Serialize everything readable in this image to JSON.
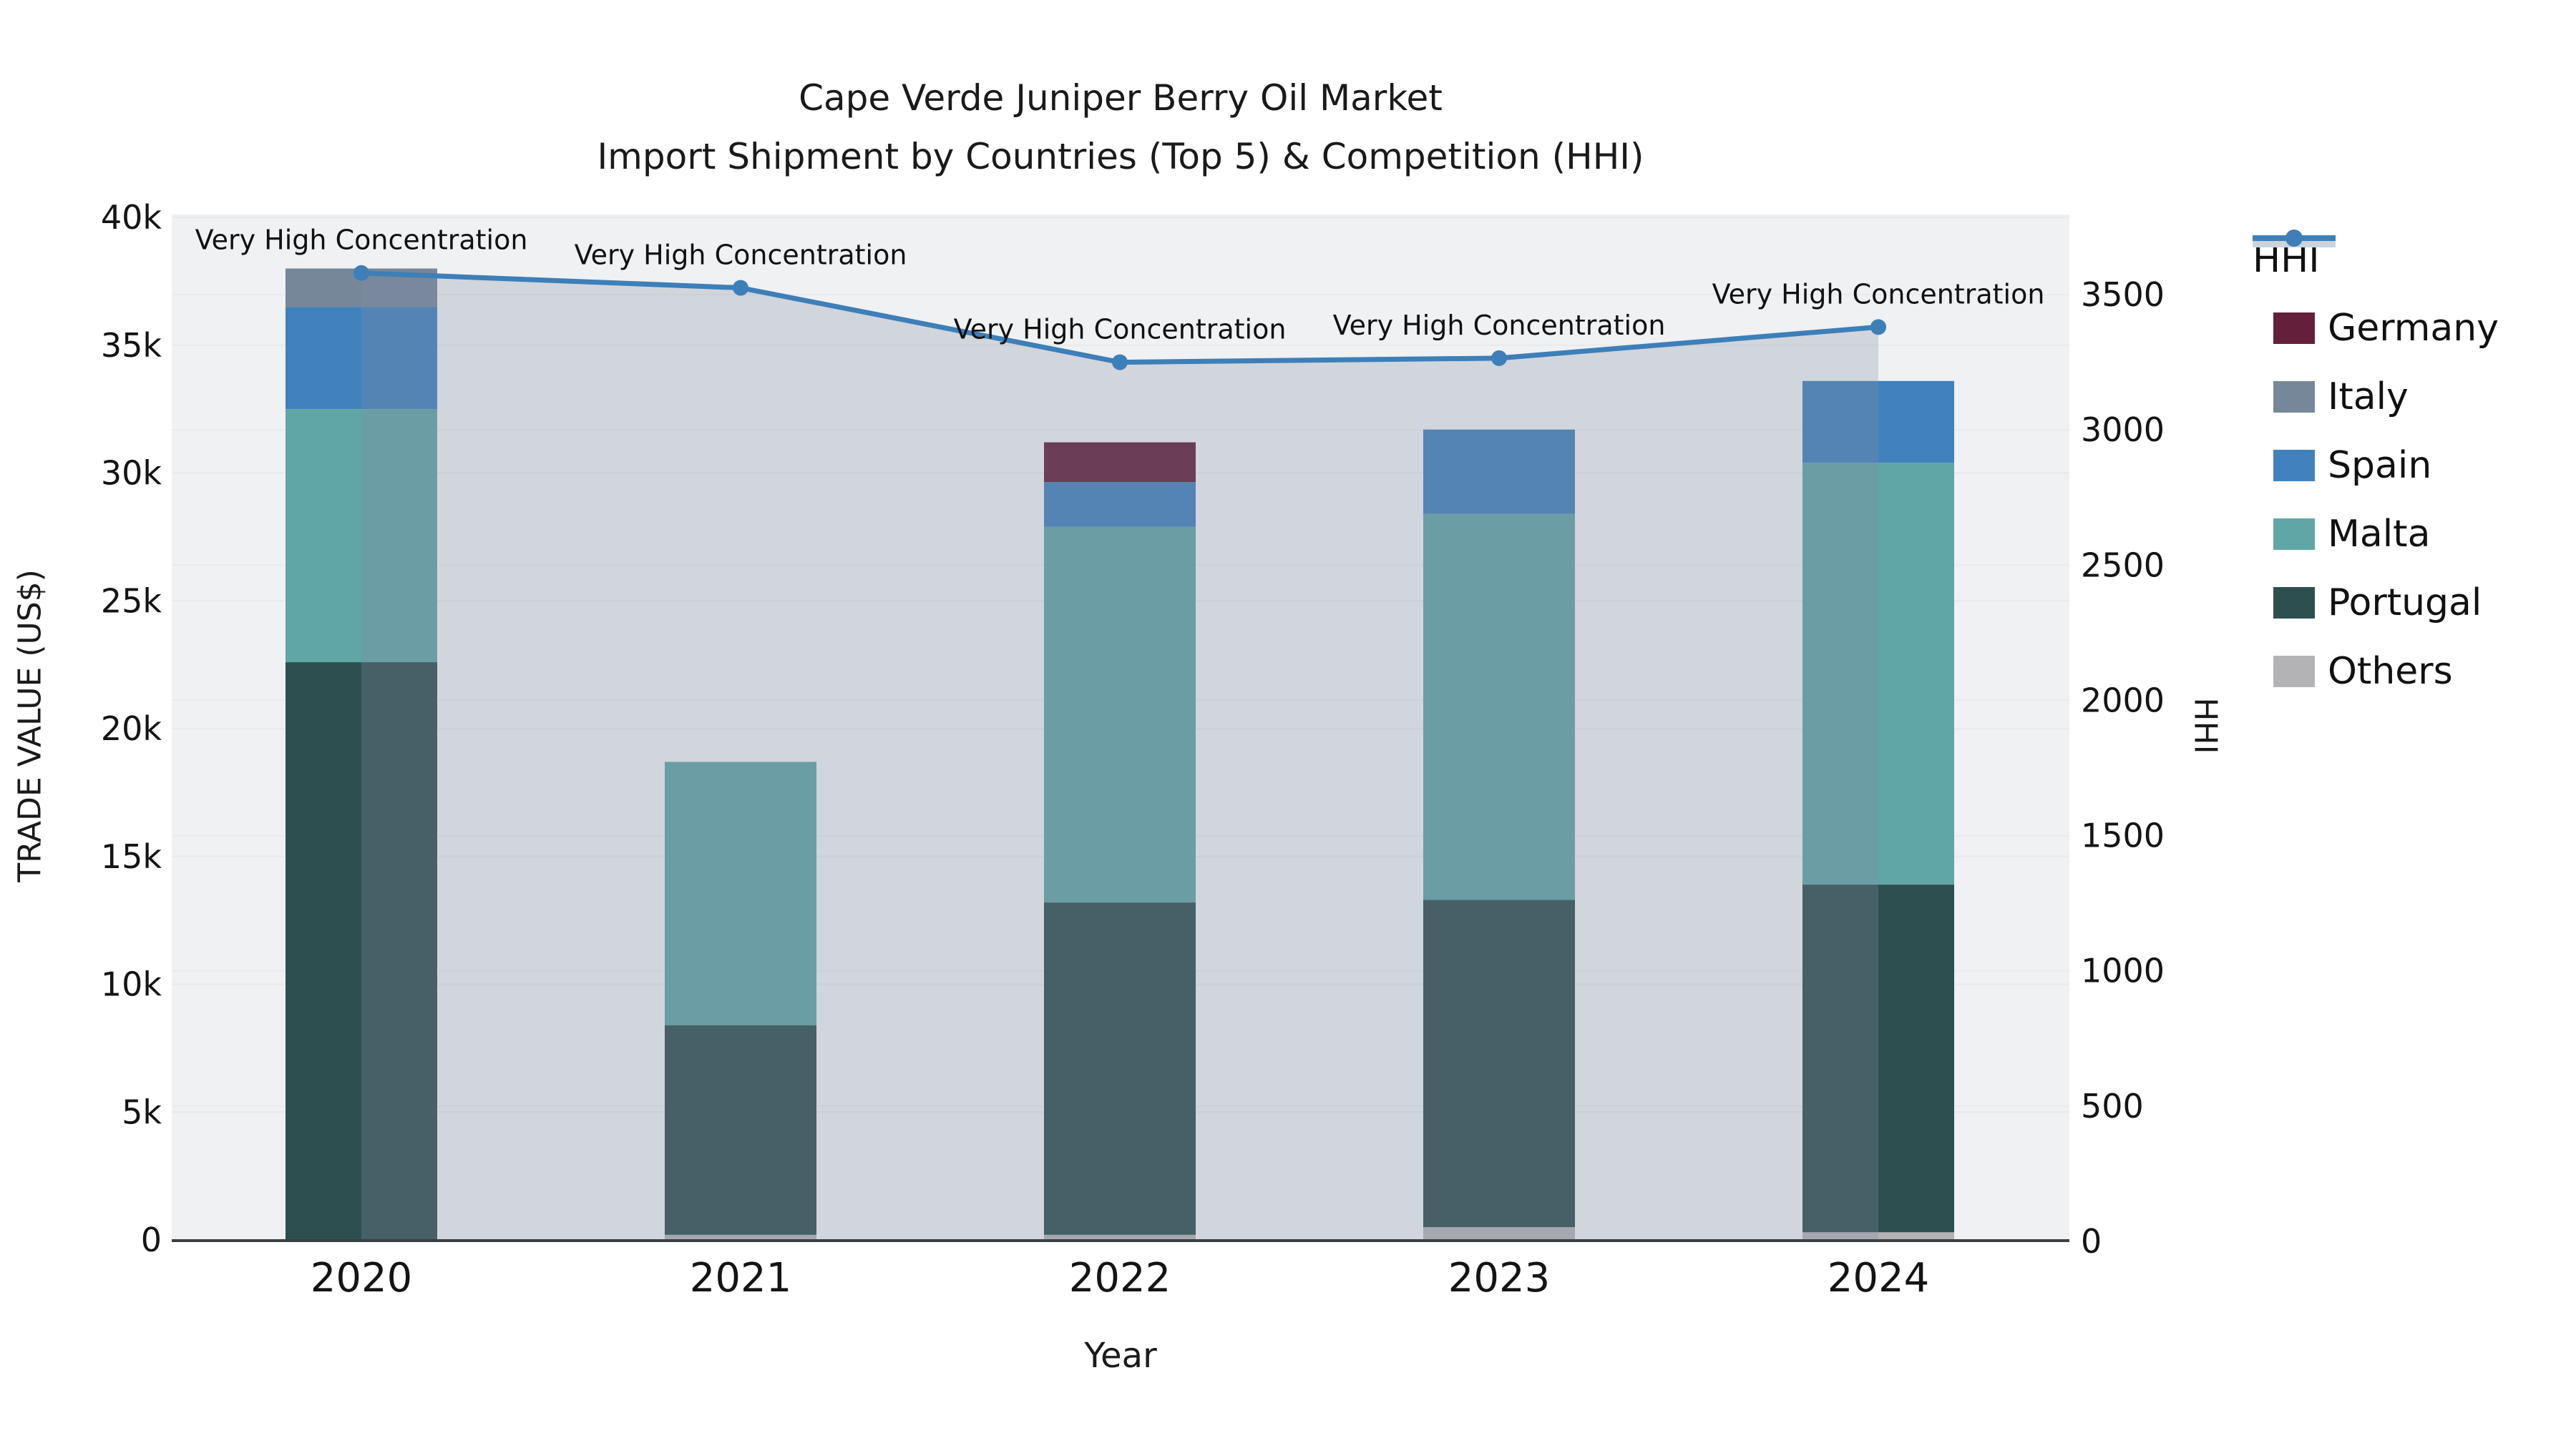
{
  "title": {
    "line1": "Cape Verde Juniper Berry Oil Market",
    "line2": "Import Shipment by Countries (Top 5) & Competition (HHI)"
  },
  "axes": {
    "left_label": "TRADE VALUE (US$)",
    "right_label": "HHI",
    "x_label": "Year",
    "left_ticks": [
      {
        "value": 0,
        "label": "0"
      },
      {
        "value": 5000,
        "label": "5k"
      },
      {
        "value": 10000,
        "label": "10k"
      },
      {
        "value": 15000,
        "label": "15k"
      },
      {
        "value": 20000,
        "label": "20k"
      },
      {
        "value": 25000,
        "label": "25k"
      },
      {
        "value": 30000,
        "label": "30k"
      },
      {
        "value": 35000,
        "label": "35k"
      },
      {
        "value": 40000,
        "label": "40k"
      }
    ],
    "right_ticks": [
      {
        "value": 0,
        "label": "0"
      },
      {
        "value": 500,
        "label": "500"
      },
      {
        "value": 1000,
        "label": "1000"
      },
      {
        "value": 1500,
        "label": "1500"
      },
      {
        "value": 2000,
        "label": "2000"
      },
      {
        "value": 2500,
        "label": "2500"
      },
      {
        "value": 3000,
        "label": "3000"
      },
      {
        "value": 3500,
        "label": "3500"
      }
    ]
  },
  "legend": {
    "items": [
      {
        "label": "HHI",
        "type": "line",
        "color": "#3d7fb8",
        "band_color": "#ccd3dc"
      },
      {
        "label": "Germany",
        "type": "box",
        "color": "#64203a"
      },
      {
        "label": "Italy",
        "type": "box",
        "color": "#76879a"
      },
      {
        "label": "Spain",
        "type": "box",
        "color": "#4282bc"
      },
      {
        "label": "Malta",
        "type": "box",
        "color": "#61a6a6"
      },
      {
        "label": "Portugal",
        "type": "box",
        "color": "#2e4f50"
      },
      {
        "label": "Others",
        "type": "box",
        "color": "#b3b3b5"
      }
    ]
  },
  "chart_data": {
    "type": "combo: stacked-bar + line (secondary axis)",
    "title": "Cape Verde Juniper Berry Oil Market — Import Shipment by Countries (Top 5) & Competition (HHI)",
    "xlabel": "Year",
    "ylabel_left": "TRADE VALUE (US$)",
    "ylabel_right": "HHI",
    "categories": [
      "2020",
      "2021",
      "2022",
      "2023",
      "2024"
    ],
    "bar_stack_order_bottom_to_top": [
      "Others",
      "Portugal",
      "Malta",
      "Spain",
      "Italy",
      "Germany"
    ],
    "series": [
      {
        "name": "Others",
        "color": "#b3b3b5",
        "values": [
          0,
          200,
          200,
          500,
          300
        ]
      },
      {
        "name": "Portugal",
        "color": "#2e4f50",
        "values": [
          22600,
          8200,
          13000,
          12800,
          13600
        ]
      },
      {
        "name": "Malta",
        "color": "#61a6a6",
        "values": [
          9900,
          10300,
          14700,
          15100,
          16500
        ]
      },
      {
        "name": "Spain",
        "color": "#4282bc",
        "values": [
          4000,
          0,
          1750,
          3300,
          3200
        ]
      },
      {
        "name": "Italy",
        "color": "#76879a",
        "values": [
          1500,
          0,
          0,
          0,
          0
        ]
      },
      {
        "name": "Germany",
        "color": "#64203a",
        "values": [
          0,
          0,
          1550,
          0,
          0
        ]
      }
    ],
    "bar_totals": [
      38000,
      18700,
      31200,
      31700,
      33600
    ],
    "hhi_line": {
      "name": "HHI",
      "color": "#3d7fb8",
      "area_fill_color": "rgba(128,140,160,0.28)",
      "values": [
        3580,
        3525,
        3250,
        3265,
        3380
      ]
    },
    "annotations": [
      {
        "year": "2020",
        "text": "Very High Concentration"
      },
      {
        "year": "2021",
        "text": "Very High Concentration"
      },
      {
        "year": "2022",
        "text": "Very High Concentration"
      },
      {
        "year": "2023",
        "text": "Very High Concentration"
      },
      {
        "year": "2024",
        "text": "Very High Concentration"
      }
    ],
    "ylim_left": [
      0,
      40000
    ],
    "ylim_right": [
      0,
      3790
    ],
    "grid": true,
    "legend_position": "right",
    "plot_background": "#f0f1f3",
    "gridline_color": "#e8eaec",
    "axis_line_color": "#3a3f44"
  }
}
